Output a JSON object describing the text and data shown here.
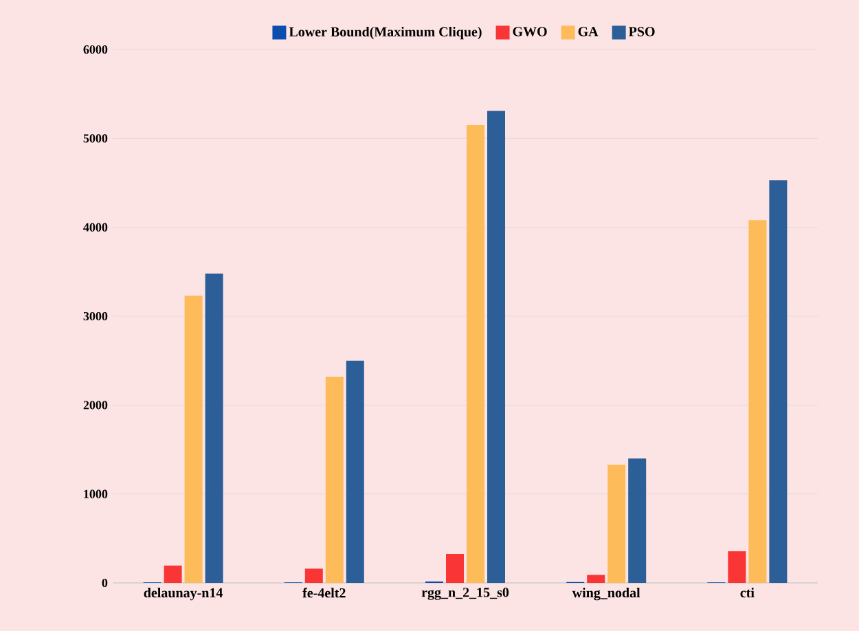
{
  "chart_data": {
    "type": "bar",
    "categories": [
      "delaunay-n14",
      "fe-4elt2",
      "rgg_n_2_15_s0",
      "wing_nodal",
      "cti"
    ],
    "series": [
      {
        "name": "Lower Bound(Maximum Clique)",
        "color": "#0b4cae",
        "values": [
          5,
          5,
          15,
          10,
          5
        ]
      },
      {
        "name": "GWO",
        "color": "#f93535",
        "values": [
          195,
          160,
          325,
          90,
          355
        ]
      },
      {
        "name": "GA",
        "color": "#fdbb5a",
        "values": [
          3230,
          2320,
          5150,
          1330,
          4080
        ]
      },
      {
        "name": "PSO",
        "color": "#2c5e98",
        "values": [
          3480,
          2500,
          5310,
          1400,
          4530
        ]
      }
    ],
    "ylim": [
      0,
      6000
    ],
    "yticks": [
      0,
      1000,
      2000,
      3000,
      4000,
      5000,
      6000
    ],
    "grid": "y",
    "legend": "top"
  }
}
